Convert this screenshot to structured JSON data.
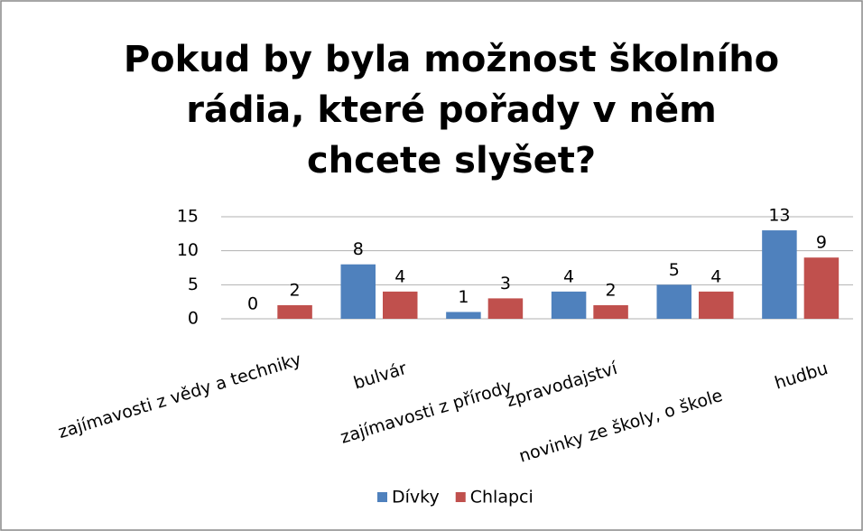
{
  "chart_data": {
    "type": "bar",
    "title": "Pokud by byla možnost školního rádia, které pořady v něm chcete slyšet?",
    "categories": [
      "zajímavosti z vědy a techniky",
      "bulvár",
      "zajímavosti z přírody",
      "zpravodajství",
      "novinky ze školy, o škole",
      "hudbu"
    ],
    "series": [
      {
        "name": "Dívky",
        "color": "#4f81bd",
        "values": [
          0,
          8,
          1,
          4,
          5,
          13
        ]
      },
      {
        "name": "Chlapci",
        "color": "#c0504d",
        "values": [
          2,
          4,
          3,
          2,
          4,
          9
        ]
      }
    ],
    "ylim": [
      0,
      15
    ],
    "yticks": [
      0,
      5,
      10,
      15
    ],
    "grid": true,
    "legend": "bottom"
  }
}
